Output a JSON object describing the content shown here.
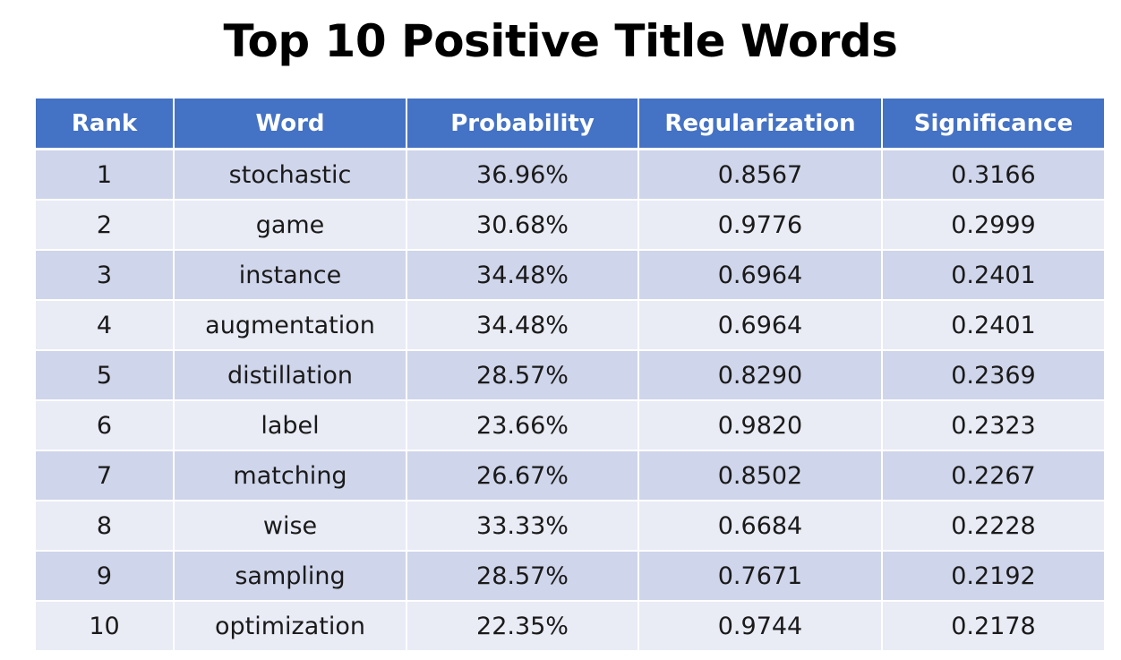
{
  "title": "Top 10 Positive Title Words",
  "table": {
    "headers": [
      "Rank",
      "Word",
      "Probability",
      "Regularization",
      "Significance"
    ],
    "rows": [
      [
        "1",
        "stochastic",
        "36.96%",
        "0.8567",
        "0.3166"
      ],
      [
        "2",
        "game",
        "30.68%",
        "0.9776",
        "0.2999"
      ],
      [
        "3",
        "instance",
        "34.48%",
        "0.6964",
        "0.2401"
      ],
      [
        "4",
        "augmentation",
        "34.48%",
        "0.6964",
        "0.2401"
      ],
      [
        "5",
        "distillation",
        "28.57%",
        "0.8290",
        "0.2369"
      ],
      [
        "6",
        "label",
        "23.66%",
        "0.9820",
        "0.2323"
      ],
      [
        "7",
        "matching",
        "26.67%",
        "0.8502",
        "0.2267"
      ],
      [
        "8",
        "wise",
        "33.33%",
        "0.6684",
        "0.2228"
      ],
      [
        "9",
        "sampling",
        "28.57%",
        "0.7671",
        "0.2192"
      ],
      [
        "10",
        "optimization",
        "22.35%",
        "0.9744",
        "0.2178"
      ]
    ]
  },
  "colors": {
    "header_bg": "#4472c4",
    "row_band_a": "#cfd5ea",
    "row_band_b": "#e9ebf5",
    "header_text": "#ffffff",
    "cell_text": "#1a1a1a"
  }
}
